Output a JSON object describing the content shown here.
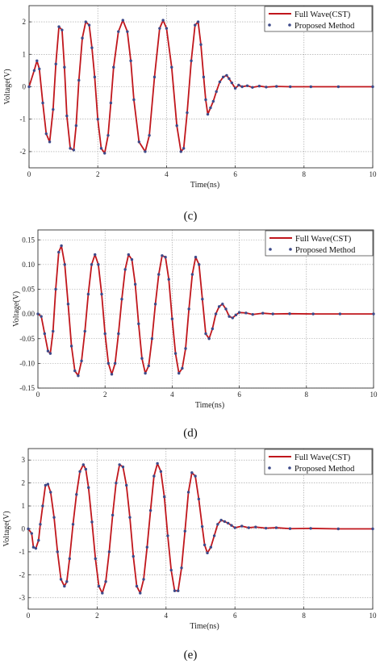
{
  "colors": {
    "full_wave": "#c0161c",
    "proposed": "#3d4a8a",
    "grid": "#9a9a9a",
    "axis": "#333333"
  },
  "chart_data": [
    {
      "type": "line",
      "caption": "(c)",
      "xlabel": "Time(ns)",
      "ylabel": "Voltage(V)",
      "xlim": [
        0,
        10
      ],
      "ylim": [
        -2.5,
        2.5
      ],
      "xticks": [
        0,
        2,
        4,
        6,
        8,
        10
      ],
      "yticks": [
        -2,
        -1,
        0,
        1,
        2
      ],
      "ytick_labels": [
        "-2",
        "-1",
        "0",
        "1",
        "2"
      ],
      "grid": true,
      "legend_position": "top-right",
      "series": [
        {
          "name": "Full Wave(CST)",
          "style": "line",
          "x": [
            0,
            0.15,
            0.23,
            0.3,
            0.4,
            0.5,
            0.6,
            0.7,
            0.78,
            0.87,
            0.96,
            1.03,
            1.1,
            1.2,
            1.3,
            1.37,
            1.45,
            1.55,
            1.65,
            1.75,
            1.83,
            1.91,
            2.0,
            2.1,
            2.2,
            2.3,
            2.38,
            2.46,
            2.6,
            2.73,
            2.86,
            2.96,
            3.05,
            3.2,
            3.38,
            3.5,
            3.65,
            3.8,
            3.9,
            4.0,
            4.15,
            4.3,
            4.42,
            4.5,
            4.6,
            4.72,
            4.83,
            4.92,
            5.0,
            5.08,
            5.14,
            5.2,
            5.28,
            5.36,
            5.45,
            5.55,
            5.65,
            5.75,
            5.82,
            5.9,
            6.0,
            6.1,
            6.2,
            6.35,
            6.5,
            6.7,
            6.9,
            7.2,
            7.6,
            8.2,
            9.0,
            10.0
          ],
          "y": [
            0,
            0.5,
            0.8,
            0.55,
            -0.5,
            -1.45,
            -1.7,
            -0.7,
            0.7,
            1.85,
            1.75,
            0.6,
            -0.9,
            -1.9,
            -1.95,
            -1.2,
            0.2,
            1.5,
            2.0,
            1.9,
            1.2,
            0.3,
            -1.0,
            -1.9,
            -2.05,
            -1.5,
            -0.5,
            0.6,
            1.7,
            2.05,
            1.7,
            0.8,
            -0.4,
            -1.7,
            -2.0,
            -1.5,
            0.3,
            1.8,
            2.05,
            1.8,
            0.6,
            -1.2,
            -2.0,
            -1.9,
            -0.8,
            0.8,
            1.9,
            2.0,
            1.3,
            0.3,
            -0.4,
            -0.85,
            -0.65,
            -0.45,
            -0.15,
            0.15,
            0.3,
            0.35,
            0.25,
            0.12,
            -0.05,
            0.05,
            0.0,
            0.03,
            -0.02,
            0.02,
            -0.01,
            0.01,
            0.0,
            0.0,
            0.0,
            0.0
          ]
        },
        {
          "name": "Proposed Method",
          "style": "markers",
          "x": [
            0,
            0.15,
            0.23,
            0.3,
            0.4,
            0.5,
            0.6,
            0.7,
            0.78,
            0.87,
            0.96,
            1.03,
            1.1,
            1.2,
            1.3,
            1.37,
            1.45,
            1.55,
            1.65,
            1.75,
            1.83,
            1.91,
            2.0,
            2.1,
            2.2,
            2.3,
            2.38,
            2.46,
            2.6,
            2.73,
            2.86,
            2.96,
            3.05,
            3.2,
            3.38,
            3.5,
            3.65,
            3.8,
            3.9,
            4.0,
            4.15,
            4.3,
            4.42,
            4.5,
            4.6,
            4.72,
            4.83,
            4.92,
            5.0,
            5.08,
            5.14,
            5.2,
            5.28,
            5.36,
            5.45,
            5.55,
            5.65,
            5.75,
            5.82,
            5.9,
            6.0,
            6.1,
            6.2,
            6.35,
            6.5,
            6.7,
            6.9,
            7.2,
            7.6,
            8.2,
            9.0,
            10.0
          ],
          "y": [
            0,
            0.5,
            0.8,
            0.55,
            -0.5,
            -1.45,
            -1.7,
            -0.7,
            0.7,
            1.85,
            1.75,
            0.6,
            -0.9,
            -1.9,
            -1.95,
            -1.2,
            0.2,
            1.5,
            2.0,
            1.9,
            1.2,
            0.3,
            -1.0,
            -1.9,
            -2.05,
            -1.5,
            -0.5,
            0.6,
            1.7,
            2.05,
            1.7,
            0.8,
            -0.4,
            -1.7,
            -2.0,
            -1.5,
            0.3,
            1.8,
            2.05,
            1.8,
            0.6,
            -1.2,
            -2.0,
            -1.9,
            -0.8,
            0.8,
            1.9,
            2.0,
            1.3,
            0.3,
            -0.4,
            -0.85,
            -0.65,
            -0.45,
            -0.15,
            0.15,
            0.3,
            0.35,
            0.25,
            0.12,
            -0.05,
            0.05,
            0.0,
            0.03,
            -0.02,
            0.02,
            -0.01,
            0.01,
            0.0,
            0.0,
            0.0,
            0.0
          ]
        }
      ]
    },
    {
      "type": "line",
      "caption": "(d)",
      "xlabel": "Time(ns)",
      "ylabel": "Voltage(V)",
      "xlim": [
        0,
        10
      ],
      "ylim": [
        -0.15,
        0.17
      ],
      "xticks": [
        0,
        2,
        4,
        6,
        8,
        10
      ],
      "yticks": [
        -0.15,
        -0.1,
        -0.05,
        0.0,
        0.05,
        0.1,
        0.15
      ],
      "ytick_labels": [
        "-0.15",
        "-0.10",
        "-0.05",
        "0.00",
        "0.05",
        "0.10",
        "0.15"
      ],
      "grid": true,
      "legend_position": "top-right",
      "series": [
        {
          "name": "Full Wave(CST)",
          "style": "line",
          "x": [
            0,
            0.1,
            0.2,
            0.3,
            0.37,
            0.45,
            0.53,
            0.62,
            0.7,
            0.8,
            0.9,
            1.0,
            1.1,
            1.2,
            1.3,
            1.4,
            1.5,
            1.6,
            1.7,
            1.8,
            1.9,
            2.0,
            2.1,
            2.2,
            2.3,
            2.4,
            2.5,
            2.6,
            2.7,
            2.8,
            2.9,
            3.0,
            3.1,
            3.2,
            3.3,
            3.4,
            3.5,
            3.6,
            3.7,
            3.8,
            3.9,
            4.0,
            4.1,
            4.2,
            4.3,
            4.4,
            4.5,
            4.6,
            4.7,
            4.8,
            4.9,
            5.0,
            5.1,
            5.2,
            5.3,
            5.4,
            5.5,
            5.6,
            5.7,
            5.8,
            5.9,
            6.0,
            6.2,
            6.4,
            6.7,
            7.0,
            7.5,
            8.2,
            9.0,
            10.0
          ],
          "y": [
            0,
            -0.005,
            -0.04,
            -0.075,
            -0.08,
            -0.035,
            0.05,
            0.125,
            0.138,
            0.1,
            0.02,
            -0.065,
            -0.115,
            -0.125,
            -0.095,
            -0.035,
            0.04,
            0.1,
            0.12,
            0.1,
            0.04,
            -0.04,
            -0.1,
            -0.122,
            -0.1,
            -0.04,
            0.03,
            0.09,
            0.12,
            0.11,
            0.06,
            -0.02,
            -0.09,
            -0.12,
            -0.105,
            -0.05,
            0.02,
            0.08,
            0.118,
            0.115,
            0.07,
            -0.01,
            -0.08,
            -0.12,
            -0.11,
            -0.07,
            0.01,
            0.08,
            0.115,
            0.1,
            0.03,
            -0.04,
            -0.05,
            -0.03,
            0.0,
            0.015,
            0.02,
            0.01,
            -0.005,
            -0.008,
            -0.002,
            0.003,
            0.002,
            -0.001,
            0.0015,
            0.0,
            0.0005,
            0.0,
            0.0,
            0.0
          ]
        },
        {
          "name": "Proposed Method",
          "style": "markers",
          "x": [
            0,
            0.1,
            0.2,
            0.3,
            0.37,
            0.45,
            0.53,
            0.62,
            0.7,
            0.8,
            0.9,
            1.0,
            1.1,
            1.2,
            1.3,
            1.4,
            1.5,
            1.6,
            1.7,
            1.8,
            1.9,
            2.0,
            2.1,
            2.2,
            2.3,
            2.4,
            2.5,
            2.6,
            2.7,
            2.8,
            2.9,
            3.0,
            3.1,
            3.2,
            3.3,
            3.4,
            3.5,
            3.6,
            3.7,
            3.8,
            3.9,
            4.0,
            4.1,
            4.2,
            4.3,
            4.4,
            4.5,
            4.6,
            4.7,
            4.8,
            4.9,
            5.0,
            5.1,
            5.2,
            5.3,
            5.4,
            5.5,
            5.6,
            5.7,
            5.8,
            5.9,
            6.0,
            6.2,
            6.4,
            6.7,
            7.0,
            7.5,
            8.2,
            9.0,
            10.0
          ],
          "y": [
            0,
            -0.005,
            -0.04,
            -0.075,
            -0.08,
            -0.035,
            0.05,
            0.125,
            0.138,
            0.1,
            0.02,
            -0.065,
            -0.115,
            -0.125,
            -0.095,
            -0.035,
            0.04,
            0.1,
            0.12,
            0.1,
            0.04,
            -0.04,
            -0.1,
            -0.122,
            -0.1,
            -0.04,
            0.03,
            0.09,
            0.12,
            0.11,
            0.06,
            -0.02,
            -0.09,
            -0.12,
            -0.105,
            -0.05,
            0.02,
            0.08,
            0.118,
            0.115,
            0.07,
            -0.01,
            -0.08,
            -0.12,
            -0.11,
            -0.07,
            0.01,
            0.08,
            0.115,
            0.1,
            0.03,
            -0.04,
            -0.05,
            -0.03,
            0.0,
            0.015,
            0.02,
            0.01,
            -0.005,
            -0.008,
            -0.002,
            0.003,
            0.002,
            -0.001,
            0.0015,
            0.0,
            0.0005,
            0.0,
            0.0,
            0.0
          ]
        }
      ]
    },
    {
      "type": "line",
      "caption": "(e)",
      "xlabel": "Time(ns)",
      "ylabel": "Voltage(V)",
      "xlim": [
        0,
        10
      ],
      "ylim": [
        -3.5,
        3.5
      ],
      "xticks": [
        0,
        2,
        4,
        6,
        8,
        10
      ],
      "yticks": [
        -3,
        -2,
        -1,
        0,
        1,
        2,
        3
      ],
      "ytick_labels": [
        "-3",
        "-2",
        "-1",
        "0",
        "1",
        "2",
        "3"
      ],
      "grid": true,
      "legend_position": "top-right",
      "series": [
        {
          "name": "Full Wave(CST)",
          "style": "line",
          "x": [
            0,
            0.1,
            0.15,
            0.22,
            0.3,
            0.35,
            0.42,
            0.5,
            0.57,
            0.65,
            0.75,
            0.85,
            0.95,
            1.05,
            1.12,
            1.2,
            1.3,
            1.4,
            1.5,
            1.6,
            1.67,
            1.75,
            1.85,
            1.95,
            2.05,
            2.15,
            2.25,
            2.35,
            2.45,
            2.55,
            2.65,
            2.75,
            2.85,
            2.95,
            3.05,
            3.15,
            3.25,
            3.35,
            3.45,
            3.55,
            3.65,
            3.75,
            3.85,
            3.95,
            4.05,
            4.15,
            4.25,
            4.35,
            4.45,
            4.55,
            4.65,
            4.75,
            4.85,
            4.95,
            5.05,
            5.12,
            5.2,
            5.3,
            5.4,
            5.5,
            5.6,
            5.7,
            5.8,
            5.9,
            6.0,
            6.2,
            6.4,
            6.6,
            6.9,
            7.2,
            7.6,
            8.2,
            9.0,
            10.0
          ],
          "y": [
            0,
            -0.2,
            -0.8,
            -0.85,
            -0.5,
            0.2,
            1.0,
            1.9,
            1.95,
            1.6,
            0.5,
            -1.0,
            -2.2,
            -2.5,
            -2.3,
            -1.3,
            0.2,
            1.5,
            2.5,
            2.8,
            2.6,
            1.8,
            0.3,
            -1.3,
            -2.5,
            -2.8,
            -2.3,
            -1.0,
            0.6,
            2.0,
            2.8,
            2.7,
            1.9,
            0.5,
            -1.2,
            -2.5,
            -2.8,
            -2.2,
            -0.8,
            0.8,
            2.3,
            2.85,
            2.5,
            1.4,
            -0.3,
            -1.8,
            -2.7,
            -2.7,
            -1.7,
            -0.1,
            1.6,
            2.45,
            2.3,
            1.3,
            0.1,
            -0.7,
            -1.05,
            -0.8,
            -0.3,
            0.2,
            0.38,
            0.32,
            0.25,
            0.15,
            0.05,
            0.12,
            0.05,
            0.08,
            0.03,
            0.05,
            0.01,
            0.02,
            0.0,
            0.0
          ]
        },
        {
          "name": "Proposed Method",
          "style": "markers",
          "x": [
            0,
            0.1,
            0.15,
            0.22,
            0.3,
            0.35,
            0.42,
            0.5,
            0.57,
            0.65,
            0.75,
            0.85,
            0.95,
            1.05,
            1.12,
            1.2,
            1.3,
            1.4,
            1.5,
            1.6,
            1.67,
            1.75,
            1.85,
            1.95,
            2.05,
            2.15,
            2.25,
            2.35,
            2.45,
            2.55,
            2.65,
            2.75,
            2.85,
            2.95,
            3.05,
            3.15,
            3.25,
            3.35,
            3.45,
            3.55,
            3.65,
            3.75,
            3.85,
            3.95,
            4.05,
            4.15,
            4.25,
            4.35,
            4.45,
            4.55,
            4.65,
            4.75,
            4.85,
            4.95,
            5.05,
            5.12,
            5.2,
            5.3,
            5.4,
            5.5,
            5.6,
            5.7,
            5.8,
            5.9,
            6.0,
            6.2,
            6.4,
            6.6,
            6.9,
            7.2,
            7.6,
            8.2,
            9.0,
            10.0
          ],
          "y": [
            0,
            -0.2,
            -0.8,
            -0.85,
            -0.5,
            0.2,
            1.0,
            1.9,
            1.95,
            1.6,
            0.5,
            -1.0,
            -2.2,
            -2.5,
            -2.3,
            -1.3,
            0.2,
            1.5,
            2.5,
            2.8,
            2.6,
            1.8,
            0.3,
            -1.3,
            -2.5,
            -2.8,
            -2.3,
            -1.0,
            0.6,
            2.0,
            2.8,
            2.7,
            1.9,
            0.5,
            -1.2,
            -2.5,
            -2.8,
            -2.2,
            -0.8,
            0.8,
            2.3,
            2.85,
            2.5,
            1.4,
            -0.3,
            -1.8,
            -2.7,
            -2.7,
            -1.7,
            -0.1,
            1.6,
            2.45,
            2.3,
            1.3,
            0.1,
            -0.7,
            -1.05,
            -0.8,
            -0.3,
            0.2,
            0.38,
            0.32,
            0.25,
            0.15,
            0.05,
            0.12,
            0.05,
            0.08,
            0.03,
            0.05,
            0.01,
            0.02,
            0.0,
            0.0
          ]
        }
      ]
    }
  ]
}
